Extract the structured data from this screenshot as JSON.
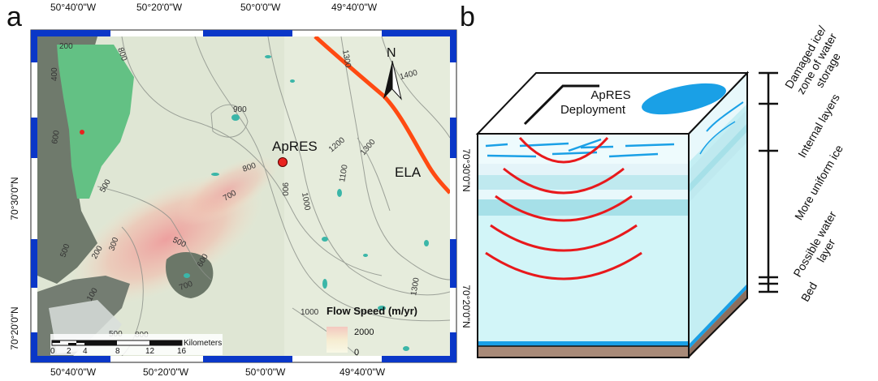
{
  "panel_a": {
    "letter": "a",
    "top_ticks": [
      "50°40'0\"W",
      "50°20'0\"W",
      "50°0'0\"W",
      "49°40'0\"W"
    ],
    "bottom_ticks": [
      "50°40'0\"W",
      "50°20'0\"W",
      "50°0'0\"W",
      "49°40'0\"W"
    ],
    "left_ticks": [
      "70°30'0\"N",
      "70°20'0\"N"
    ],
    "right_ticks": [
      "70°30'0\"N",
      "70°20'0\"N"
    ],
    "site_label": "ApRES",
    "ela_label": "ELA",
    "north_label": "N",
    "contour_labels": [
      "200",
      "800",
      "400",
      "1300",
      "1400",
      "900",
      "600",
      "800",
      "1200",
      "1300",
      "500",
      "700",
      "900",
      "1000",
      "1100",
      "500",
      "200",
      "300",
      "500",
      "600",
      "700",
      "100",
      "500",
      "800",
      "1000",
      "1300"
    ],
    "legend": {
      "title": "Flow Speed (m/yr)",
      "max": "2000",
      "min": "0"
    },
    "scalebar": {
      "unit": "Kilometers",
      "ticks": [
        "0",
        "2",
        "4",
        "8",
        "12",
        "16"
      ]
    },
    "colors": {
      "ice": "#dfe6d4",
      "fast_flow": "#e9a9a8",
      "ela_line": "#ff4a12",
      "site": "#e8231f",
      "lake": "#3bb6a8",
      "land": "#6f7a6c",
      "frame": "#0a37c8"
    }
  },
  "panel_b": {
    "letter": "b",
    "deployment_label": [
      "ApRES",
      "Deployment"
    ],
    "zones": [
      [
        "Damaged ice/",
        "zone of water",
        "storage"
      ],
      [
        "Internal layers"
      ],
      [
        "More uniform ice"
      ],
      [
        "Possible water",
        "layer"
      ],
      [
        "Bed"
      ]
    ],
    "colors": {
      "ice_top": "#ffffff",
      "ice_body": "#d2f5f8",
      "layer_band": "#a6e0e8",
      "water": "#1aa0e6",
      "bed": "#a88a78",
      "wave": "#e8191c"
    }
  }
}
